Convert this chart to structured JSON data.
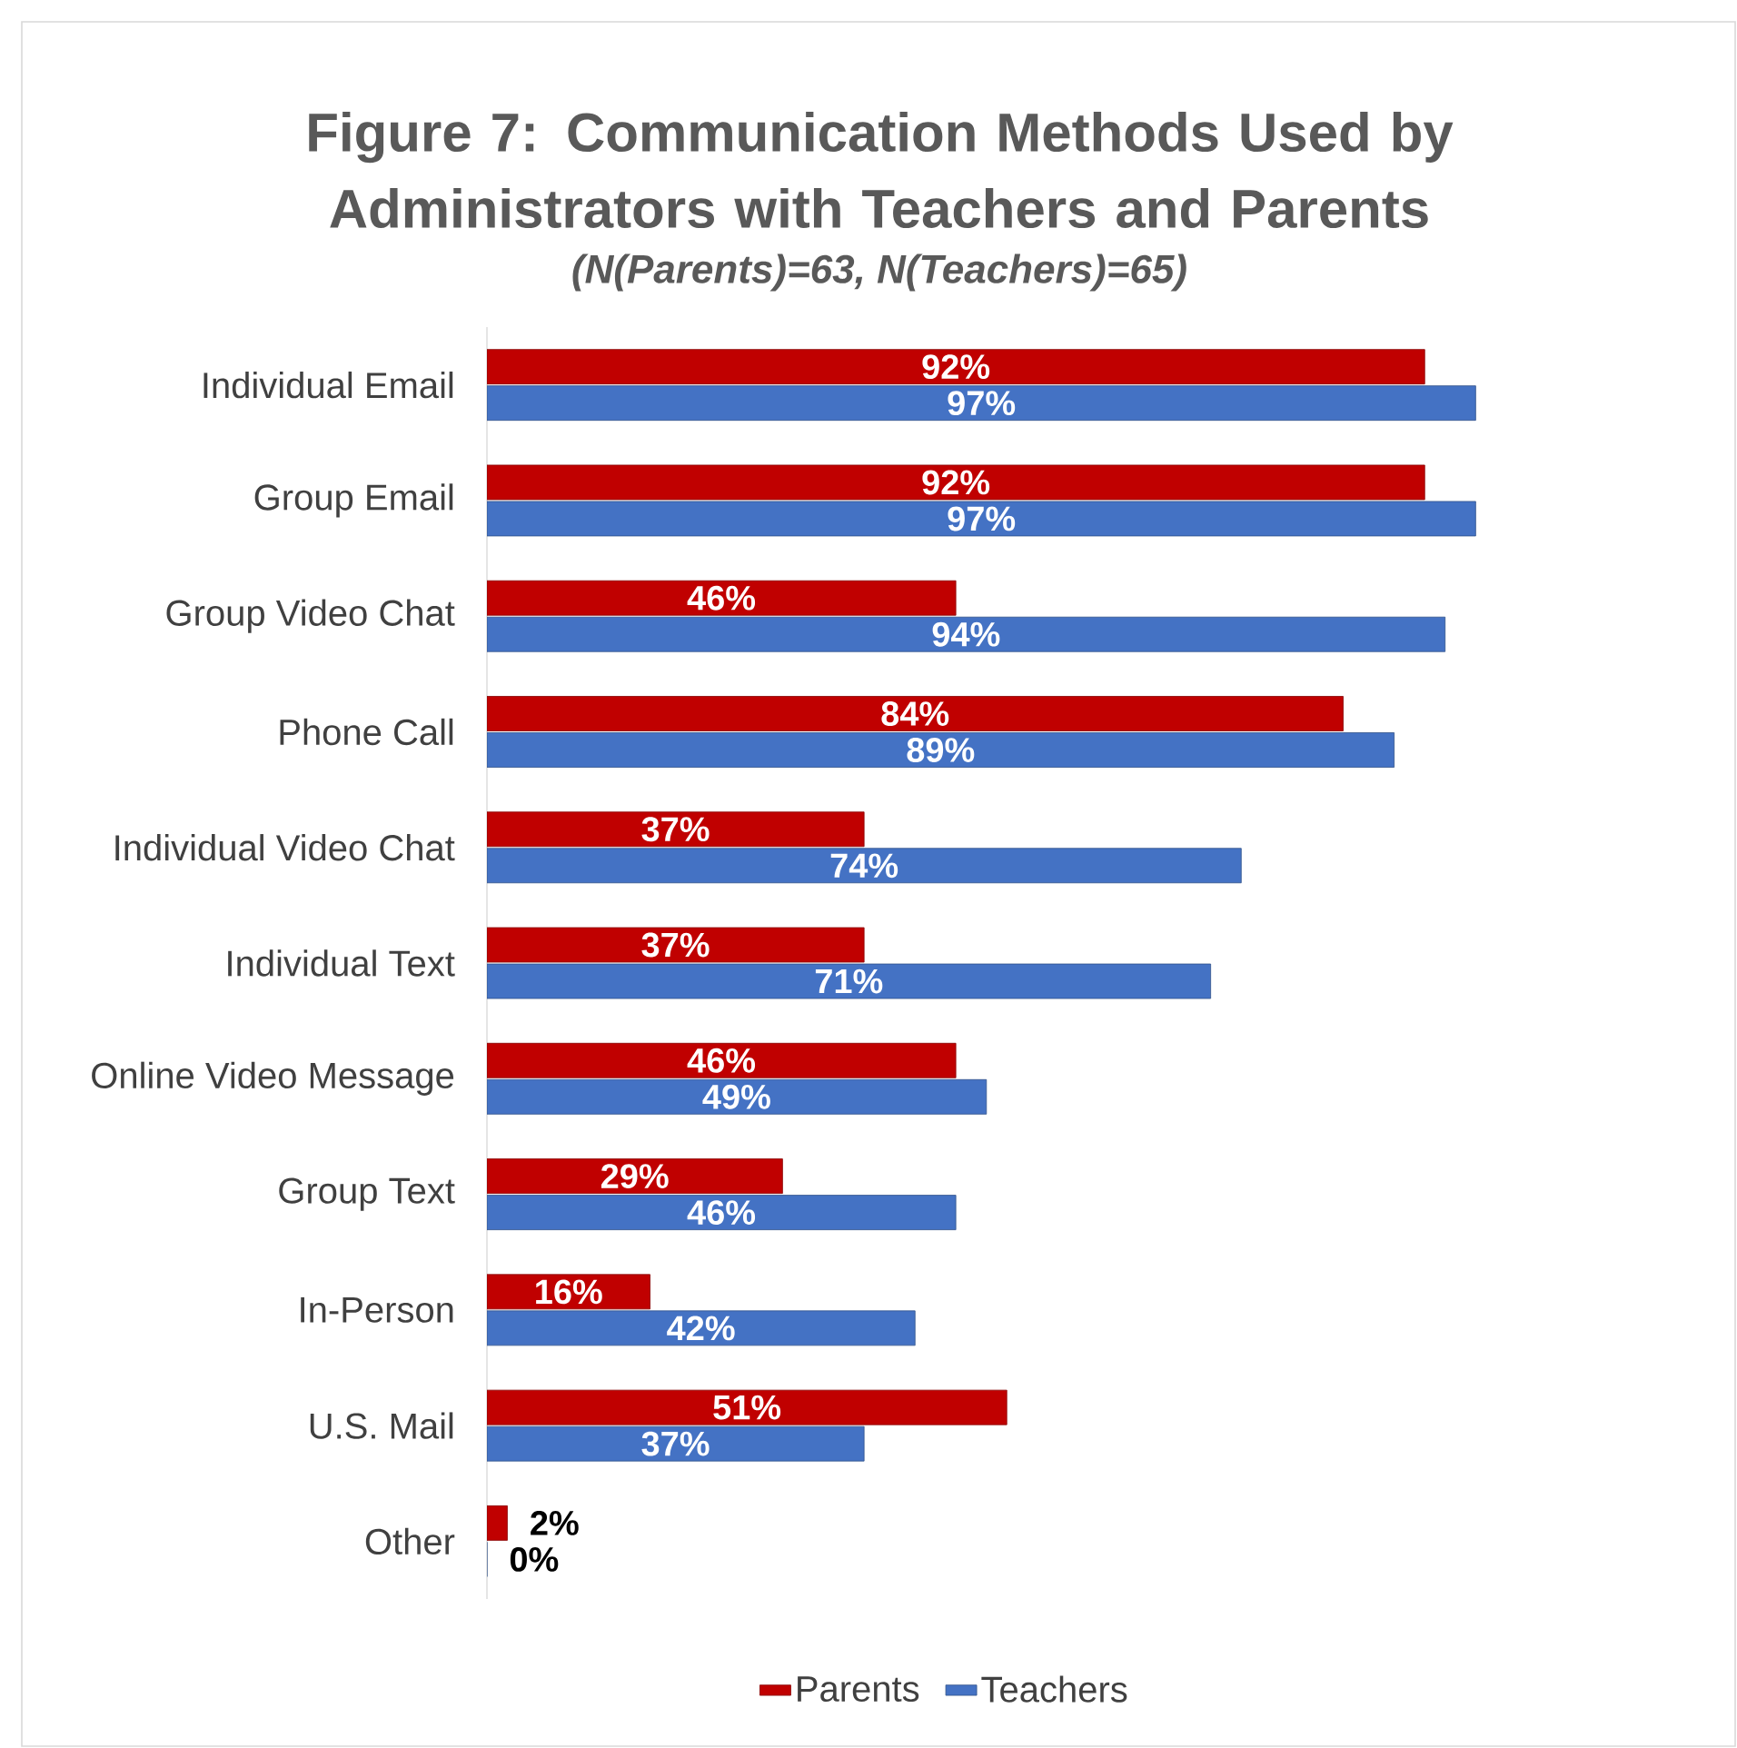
{
  "chart_data": {
    "type": "bar",
    "orientation": "horizontal",
    "title": "Figure 7: Communication Methods Used by Administrators with Teachers and Parents",
    "subtitle": "(N(Parents)=63, N(Teachers)=65)",
    "categories": [
      "Individual Email",
      "Group Email",
      "Group Video Chat",
      "Phone Call",
      "Individual Video Chat",
      "Individual Text",
      "Online Video Message",
      "Group Text",
      "In-Person",
      "U.S. Mail",
      "Other"
    ],
    "series": [
      {
        "name": "Parents",
        "color": "#c00000",
        "values": [
          92,
          92,
          46,
          84,
          37,
          37,
          46,
          29,
          16,
          51,
          2
        ],
        "value_labels": [
          "92%",
          "92%",
          "46%",
          "84%",
          "37%",
          "37%",
          "46%",
          "29%",
          "16%",
          "51%",
          "2%"
        ]
      },
      {
        "name": "Teachers",
        "color": "#4472c4",
        "values": [
          97,
          97,
          94,
          89,
          74,
          71,
          49,
          46,
          42,
          37,
          0
        ],
        "value_labels": [
          "97%",
          "97%",
          "94%",
          "89%",
          "74%",
          "71%",
          "49%",
          "46%",
          "42%",
          "37%",
          "0%"
        ]
      }
    ],
    "legend": "bottom"
  }
}
